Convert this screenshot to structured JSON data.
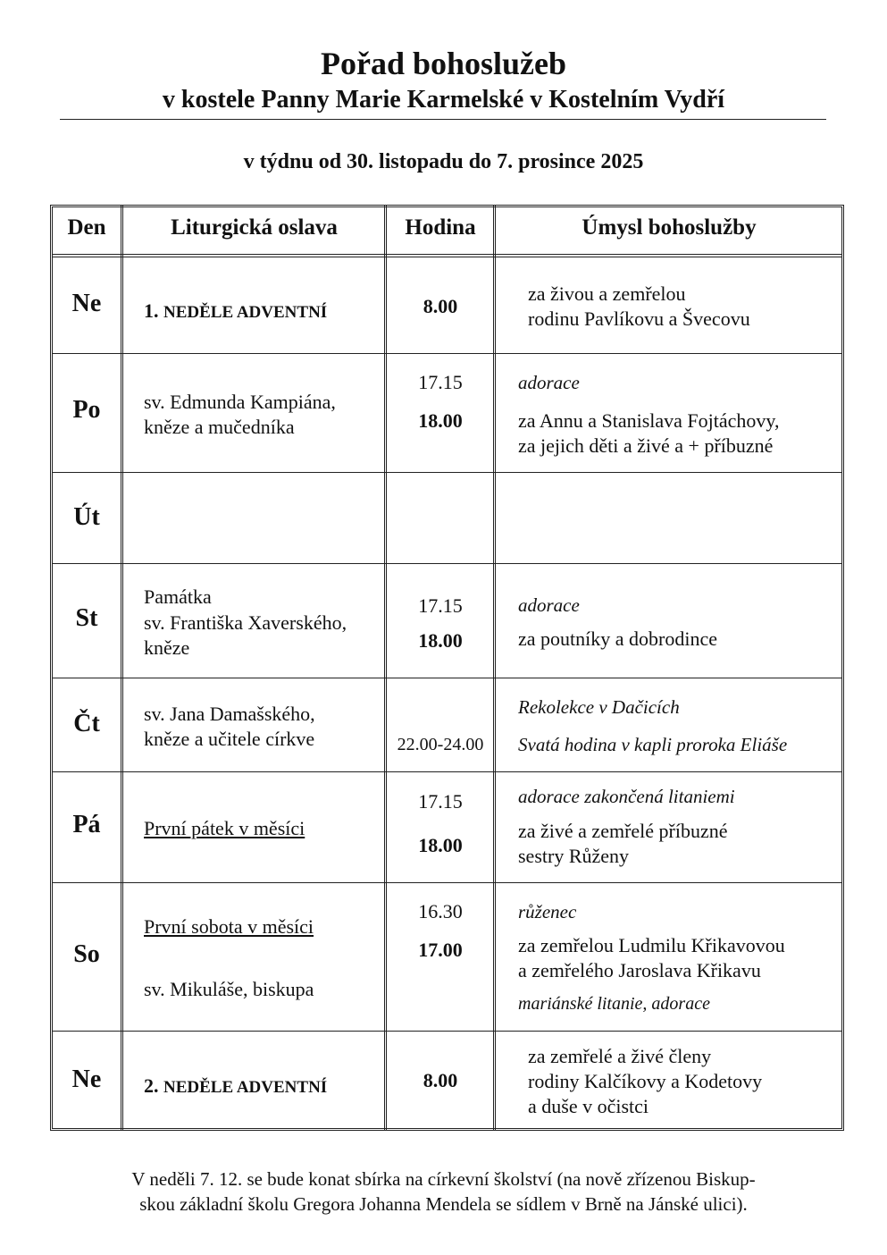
{
  "header": {
    "title": "Pořad bohoslužeb",
    "subtitle": "v kostele Panny Marie Karmelské v Kostelním Vydří",
    "week": "v týdnu od 30. listopadu do 7. prosince 2025"
  },
  "table": {
    "columns": [
      "Den",
      "Liturgická oslava",
      "Hodina",
      "Úmysl bohoslužby"
    ],
    "rows": [
      {
        "day": "Ne",
        "celebration_num": "1.",
        "celebration": "NEDĚLE ADVENTNÍ",
        "times": [
          "8.00"
        ],
        "intentions": [
          "za  živou a zemřelou",
          "rodinu Pavlíkovu a Švecovu"
        ]
      },
      {
        "day": "Po",
        "celebration_lines": [
          "sv. Edmunda Kampiána,",
          "kněze a mučedníka"
        ],
        "times": [
          "17.15",
          "18.00"
        ],
        "intentions": [
          "adorace",
          "za Annu a Stanislava Fojtáchovy,",
          "za jejich děti a živé a + příbuzné"
        ]
      },
      {
        "day": "Út"
      },
      {
        "day": "St",
        "celebration_lines": [
          "Památka",
          "sv. Františka Xaverského,",
          "kněze"
        ],
        "times": [
          "17.15",
          "18.00"
        ],
        "intentions": [
          "adorace",
          "za poutníky a dobrodince"
        ]
      },
      {
        "day": "Čt",
        "celebration_lines": [
          "sv. Jana Damašského,",
          "kněze a učitele církve"
        ],
        "times": [
          "22.00-24.00"
        ],
        "intentions": [
          "Rekolekce v Dačicích",
          "Svatá hodina v kapli proroka Eliáše"
        ]
      },
      {
        "day": "Pá",
        "celebration_lines": [
          "První pátek v měsíci"
        ],
        "times": [
          "17.15",
          "18.00"
        ],
        "intentions": [
          "adorace zakončená litaniemi",
          "za živé a zemřelé příbuzné",
          "sestry Růženy"
        ]
      },
      {
        "day": "So",
        "celebration_lines": [
          "První sobota v měsíci",
          "sv. Mikuláše, biskupa"
        ],
        "times": [
          "16.30",
          "17.00"
        ],
        "intentions": [
          "růženec",
          "za zemřelou Ludmilu Křikavovou",
          "a zemřelého Jaroslava Křikavu",
          "mariánské litanie, adorace"
        ]
      },
      {
        "day": "Ne",
        "celebration_num": "2.",
        "celebration": "NEDĚLE ADVENTNÍ",
        "times": [
          "8.00"
        ],
        "intentions": [
          "za zemřelé a živé členy",
          "rodiny Kalčíkovy a Kodetovy",
          "a duše v očistci"
        ]
      }
    ]
  },
  "footer": {
    "lines": [
      "V neděli 7. 12. se bude konat sbírka na církevní školství (na nově zřízenou Biskup-",
      "skou základní školu Gregora Johanna Mendela se sídlem v Brně na Jánské ulici)."
    ]
  }
}
